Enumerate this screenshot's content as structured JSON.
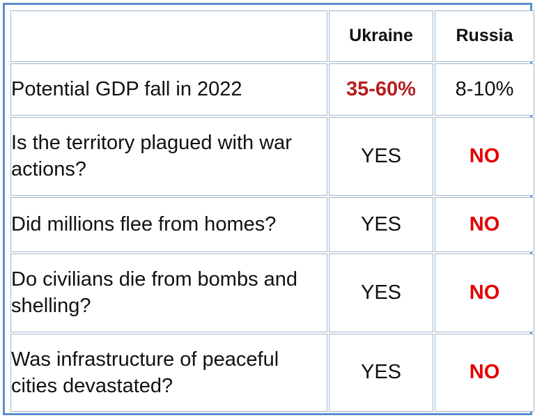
{
  "table": {
    "header": {
      "corner": "",
      "ukraine": "Ukraine",
      "russia": "Russia"
    },
    "rows": [
      {
        "question": "Potential GDP fall in 2022",
        "ukraine": "35-60%",
        "russia": "8-10%"
      },
      {
        "question": "Is the territory plagued with war actions?",
        "ukraine": "YES",
        "russia": "NO"
      },
      {
        "question": "Did millions flee from homes?",
        "ukraine": "YES",
        "russia": "NO"
      },
      {
        "question": "Do civilians die from bombs and shelling?",
        "ukraine": "YES",
        "russia": "NO"
      },
      {
        "question": "Was infrastructure of peaceful cities devastated?",
        "ukraine": "YES",
        "russia": "NO"
      }
    ]
  },
  "colors": {
    "frame_border": "#5b8fd0",
    "cell_border": "#9fb6cf",
    "highlight_dark_red": "#b41e1e",
    "highlight_red": "#e30000"
  }
}
